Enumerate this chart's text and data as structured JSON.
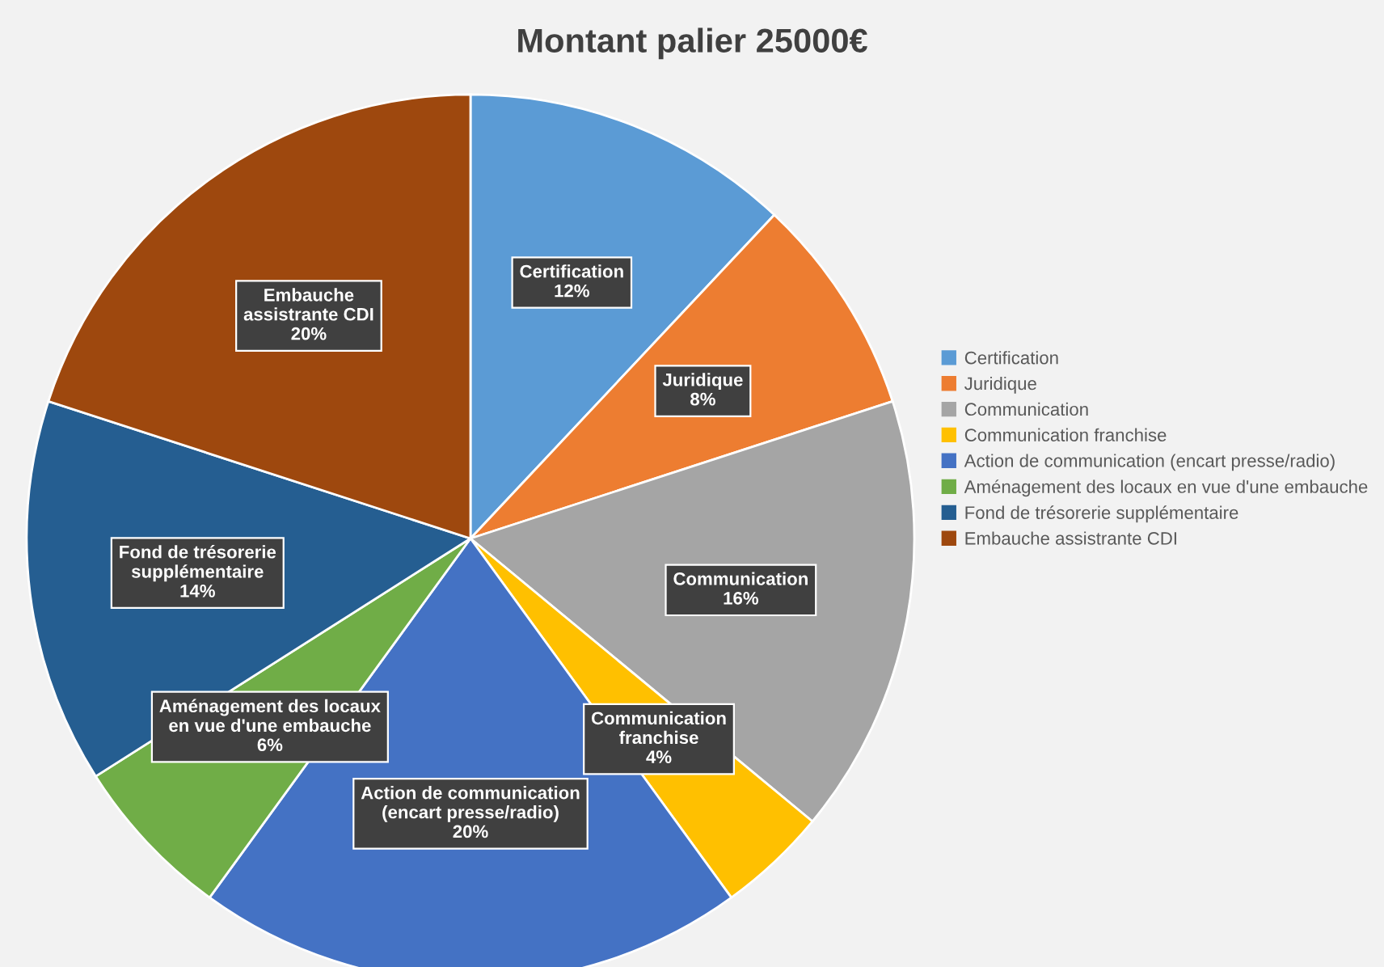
{
  "chart_data": {
    "type": "pie",
    "title": "Montant palier 25000€",
    "categories": [
      "Certification",
      "Juridique",
      "Communication",
      "Communication franchise",
      "Action de communication (encart presse/radio)",
      "Aménagement des locaux en vue d'une embauche",
      "Fond de trésorerie supplémentaire",
      "Embauche assistrante CDI"
    ],
    "values": [
      12,
      8,
      16,
      4,
      20,
      6,
      14,
      20
    ],
    "value_labels": [
      "12%",
      "8%",
      "16%",
      "4%",
      "20%",
      "6%",
      "14%",
      "20%"
    ],
    "colors": [
      "#5b9bd5",
      "#ed7d31",
      "#a5a5a5",
      "#ffc000",
      "#4472c4",
      "#70ad47",
      "#255e91",
      "#9e480e"
    ],
    "legend": "right"
  }
}
